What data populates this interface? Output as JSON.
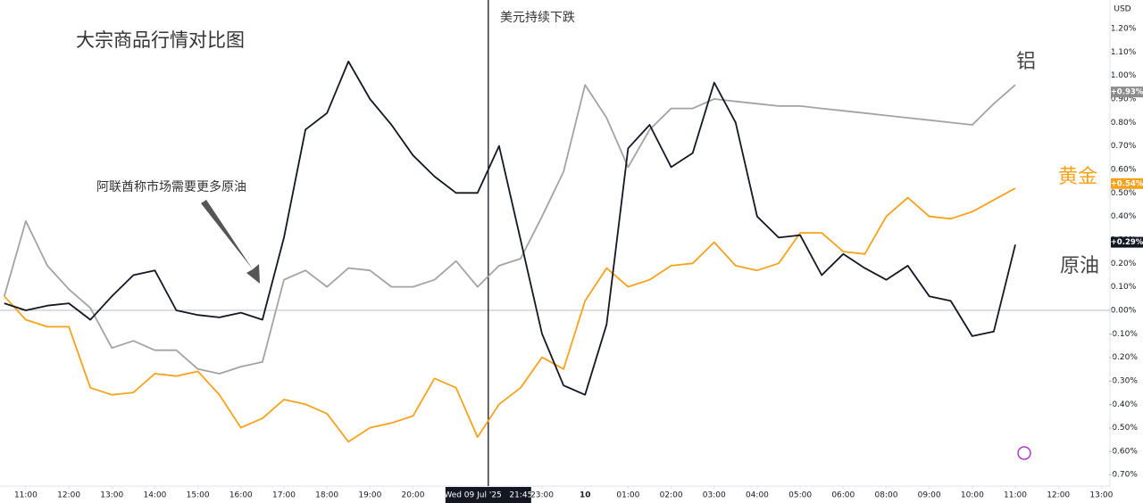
{
  "chart_data": {
    "type": "line",
    "title": "大宗商品行情对比图",
    "currency": "USD",
    "annotations": [
      {
        "text": "美元持续下跌"
      },
      {
        "text": "阿联酋称市场需要更多原油"
      }
    ],
    "crosshair": {
      "x": 10.75,
      "label": "Wed 09 Jul '25   21:45"
    },
    "xlim": [
      -0.6,
      25.2
    ],
    "xticks": [
      {
        "value": 0,
        "label": "11:00"
      },
      {
        "value": 1,
        "label": "12:00"
      },
      {
        "value": 2,
        "label": "13:00"
      },
      {
        "value": 3,
        "label": "14:00"
      },
      {
        "value": 4,
        "label": "15:00"
      },
      {
        "value": 5,
        "label": "16:00"
      },
      {
        "value": 6,
        "label": "17:00"
      },
      {
        "value": 7,
        "label": "18:00"
      },
      {
        "value": 8,
        "label": "19:00"
      },
      {
        "value": 9,
        "label": "20:00"
      },
      {
        "value": 12,
        "label": "23:00"
      },
      {
        "value": 13,
        "label": "10"
      },
      {
        "value": 14,
        "label": "01:00"
      },
      {
        "value": 15,
        "label": "02:00"
      },
      {
        "value": 16,
        "label": "03:00"
      },
      {
        "value": 17,
        "label": "04:00"
      },
      {
        "value": 18,
        "label": "05:00"
      },
      {
        "value": 19,
        "label": "06:00"
      },
      {
        "value": 20,
        "label": "08:00"
      },
      {
        "value": 21,
        "label": "09:00"
      },
      {
        "value": 22,
        "label": "10:00"
      },
      {
        "value": 23,
        "label": "11:00"
      },
      {
        "value": 24,
        "label": "12:00"
      },
      {
        "value": 25,
        "label": "13:00"
      }
    ],
    "ylim": [
      -0.7485,
      1.3218
    ],
    "yticks": [
      {
        "value": 1.2,
        "label": "1.20%"
      },
      {
        "value": 1.1,
        "label": "1.10%"
      },
      {
        "value": 1.0,
        "label": "1.00%"
      },
      {
        "value": 0.9,
        "label": "0.90%"
      },
      {
        "value": 0.8,
        "label": "0.80%"
      },
      {
        "value": 0.7,
        "label": "0.70%"
      },
      {
        "value": 0.6,
        "label": "0.60%"
      },
      {
        "value": 0.5,
        "label": "0.50%"
      },
      {
        "value": 0.4,
        "label": "0.40%"
      },
      {
        "value": 0.3,
        "label": "0.30%"
      },
      {
        "value": 0.2,
        "label": "0.20%"
      },
      {
        "value": 0.1,
        "label": "0.10%"
      },
      {
        "value": 0,
        "label": "0.00%"
      },
      {
        "value": -0.1,
        "label": "-0.10%"
      },
      {
        "value": -0.2,
        "label": "-0.20%"
      },
      {
        "value": -0.3,
        "label": "-0.30%"
      },
      {
        "value": -0.4,
        "label": "-0.40%"
      },
      {
        "value": -0.5,
        "label": "-0.50%"
      },
      {
        "value": -0.6,
        "label": "-0.60%"
      },
      {
        "value": -0.7,
        "label": "-0.70%"
      }
    ],
    "grid": false,
    "x": [
      -0.5,
      0,
      0.5,
      1,
      1.5,
      2,
      2.5,
      3,
      3.5,
      4,
      4.5,
      5,
      5.5,
      6,
      6.5,
      7,
      7.5,
      8,
      8.5,
      9,
      9.5,
      10,
      10.5,
      11,
      11.5,
      12,
      12.5,
      13,
      13.5,
      14,
      14.5,
      15,
      15.5,
      16,
      16.5,
      17,
      17.5,
      18,
      18.5,
      19,
      19.5,
      20,
      20.5,
      21,
      21.5,
      22,
      22.5,
      23
    ],
    "series": [
      {
        "name": "铝",
        "color": "#a3a3a3",
        "tag_color": "#8c8c8c",
        "price_tag": {
          "value": 0.93,
          "label": "+0.93%"
        },
        "values": [
          0.06,
          0.38,
          0.19,
          0.09,
          0.01,
          -0.16,
          -0.13,
          -0.17,
          -0.17,
          -0.25,
          -0.27,
          -0.24,
          -0.22,
          0.13,
          0.17,
          0.1,
          0.18,
          0.17,
          0.1,
          0.1,
          0.13,
          0.21,
          0.1,
          0.19,
          0.22,
          0.4,
          0.59,
          0.96,
          0.82,
          0.61,
          0.77,
          0.86,
          0.86,
          0.9,
          0.89,
          0.88,
          0.87,
          0.87,
          0.86,
          0.85,
          0.84,
          0.83,
          0.82,
          0.81,
          0.8,
          0.79,
          0.88,
          0.96
        ]
      },
      {
        "name": "黄金",
        "color": "#f7a21b",
        "tag_color": "#f7a21b",
        "price_tag": {
          "value": 0.54,
          "label": "+0.54%"
        },
        "values": [
          0.06,
          -0.04,
          -0.07,
          -0.07,
          -0.33,
          -0.36,
          -0.35,
          -0.27,
          -0.28,
          -0.26,
          -0.36,
          -0.5,
          -0.46,
          -0.38,
          -0.4,
          -0.44,
          -0.56,
          -0.5,
          -0.48,
          -0.45,
          -0.29,
          -0.33,
          -0.54,
          -0.4,
          -0.33,
          -0.2,
          -0.25,
          0.04,
          0.18,
          0.1,
          0.13,
          0.19,
          0.2,
          0.29,
          0.19,
          0.17,
          0.2,
          0.33,
          0.33,
          0.25,
          0.24,
          0.4,
          0.48,
          0.4,
          0.39,
          0.42,
          0.47,
          0.52
        ]
      },
      {
        "name": "原油",
        "color": "#131722",
        "tag_color": "#131722",
        "price_tag": {
          "value": 0.29,
          "label": "+0.29%"
        },
        "values": [
          0.03,
          0.0,
          0.02,
          0.03,
          -0.04,
          0.06,
          0.15,
          0.17,
          0.0,
          -0.02,
          -0.03,
          -0.01,
          -0.04,
          0.31,
          0.77,
          0.84,
          1.06,
          0.9,
          0.79,
          0.66,
          0.57,
          0.5,
          0.5,
          0.7,
          0.3,
          -0.1,
          -0.32,
          -0.36,
          -0.06,
          0.69,
          0.79,
          0.61,
          0.67,
          0.97,
          0.8,
          0.4,
          0.31,
          0.32,
          0.15,
          0.24,
          0.18,
          0.13,
          0.19,
          0.06,
          0.04,
          -0.11,
          -0.09,
          0.28
        ]
      }
    ]
  }
}
